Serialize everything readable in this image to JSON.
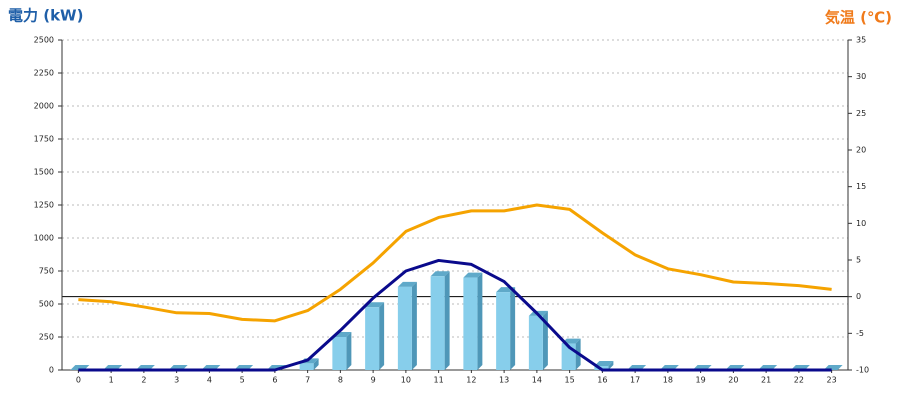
{
  "chart_data": {
    "type": "bar",
    "title": "電力 (kW)",
    "title_color": "#1f5fa8",
    "y2_title": "気温 (℃)",
    "y2_title_color": "#f07a1a",
    "categories": [
      "0",
      "1",
      "2",
      "3",
      "4",
      "5",
      "6",
      "7",
      "8",
      "9",
      "10",
      "11",
      "12",
      "13",
      "14",
      "15",
      "16",
      "17",
      "18",
      "19",
      "20",
      "21",
      "22",
      "23"
    ],
    "series": [
      {
        "type": "bar",
        "color": "#87ceeb",
        "values": [
          0,
          0,
          0,
          0,
          0,
          0,
          0,
          50,
          250,
          475,
          630,
          710,
          700,
          590,
          410,
          200,
          30,
          0,
          0,
          0,
          0,
          0,
          0,
          0
        ]
      },
      {
        "type": "line",
        "color": "#0a0a8c",
        "values": [
          0,
          0,
          0,
          0,
          0,
          0,
          0,
          75,
          300,
          545,
          750,
          830,
          800,
          670,
          430,
          170,
          0,
          0,
          0,
          0,
          0,
          0,
          0,
          0
        ]
      },
      {
        "type": "line",
        "color": "#f5a300",
        "axis": "y2",
        "values": [
          -0.4,
          -0.7,
          -1.4,
          -2.2,
          -2.3,
          -3.1,
          -3.3,
          -1.9,
          1.0,
          4.6,
          8.9,
          10.8,
          11.7,
          11.7,
          12.5,
          11.9,
          8.7,
          5.7,
          3.8,
          3.0,
          2.0,
          1.8,
          1.5,
          1.0
        ]
      }
    ],
    "ylim": [
      0,
      2500
    ],
    "yticks": [
      0,
      250,
      500,
      750,
      1000,
      1250,
      1500,
      1750,
      2000,
      2250,
      2500
    ],
    "y2lim": [
      -10,
      35
    ],
    "y2ticks": [
      -10,
      -5,
      0,
      5,
      10,
      15,
      20,
      25,
      30,
      35
    ],
    "reference_y2": 0,
    "grid": true
  }
}
